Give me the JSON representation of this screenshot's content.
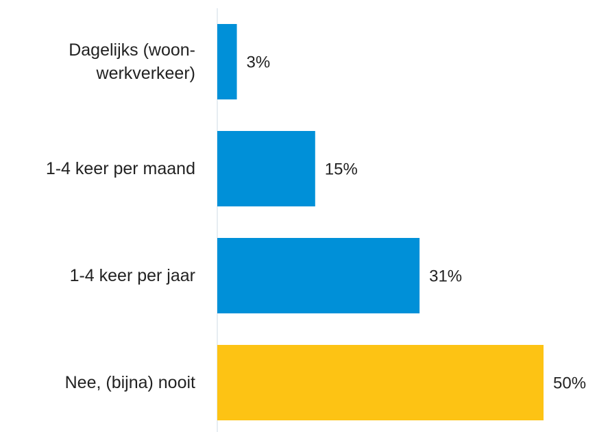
{
  "chart_data": {
    "type": "bar",
    "orientation": "horizontal",
    "categories": [
      "Dagelijks (woon-werkverkeer)",
      "1-4 keer per maand",
      "1-4 keer per jaar",
      "Nee, (bijna) nooit"
    ],
    "values": [
      3,
      15,
      31,
      50
    ],
    "value_labels": [
      "3%",
      "15%",
      "31%",
      "50%"
    ],
    "colors": [
      "#0090d8",
      "#0090d8",
      "#0090d8",
      "#fdc314"
    ],
    "xlim": [
      0,
      50
    ]
  }
}
